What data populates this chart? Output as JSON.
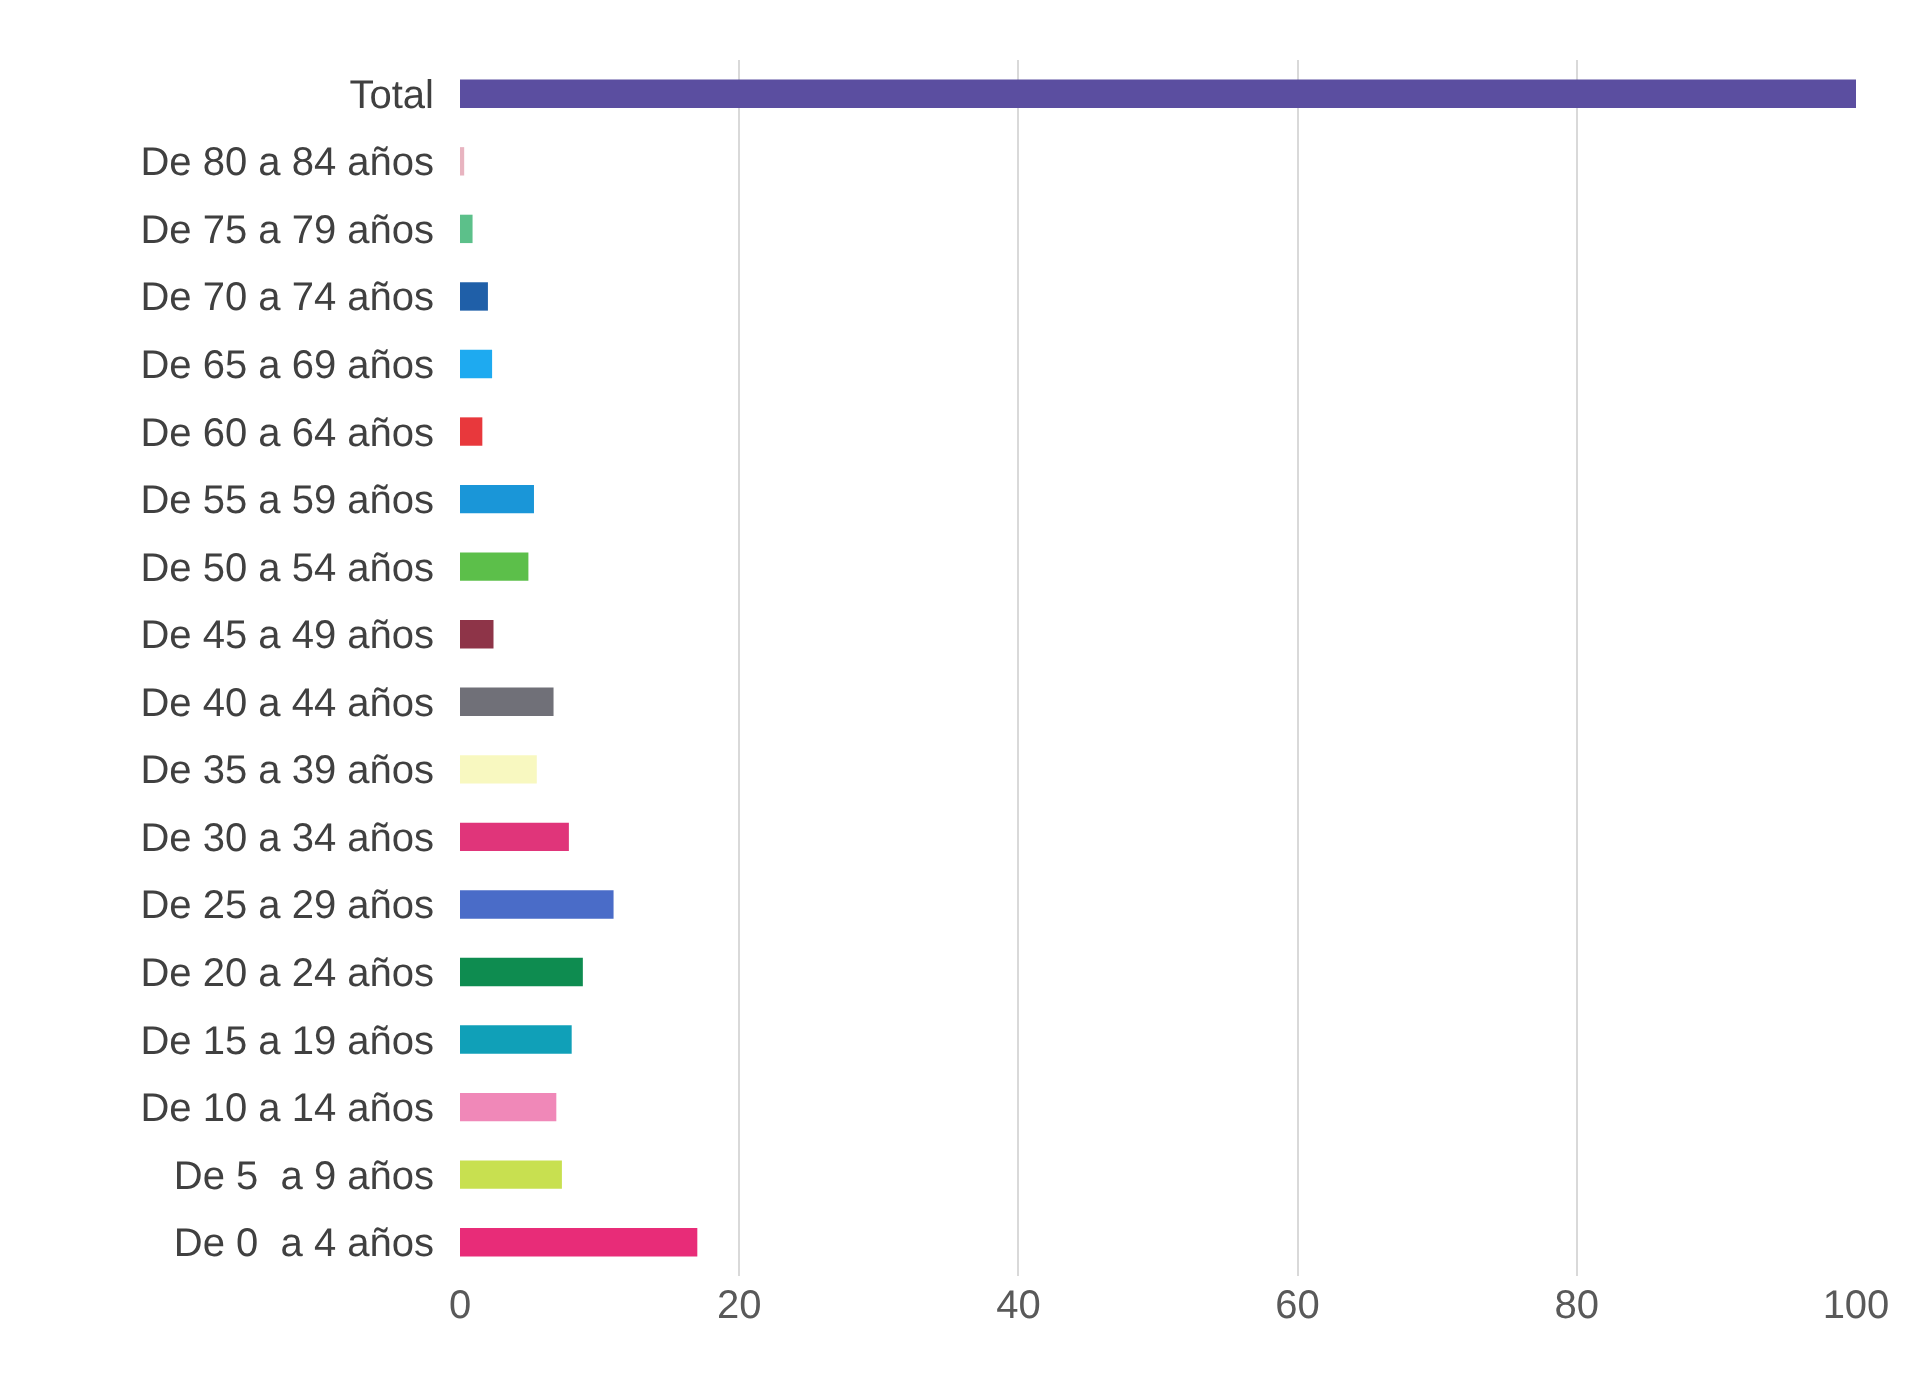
{
  "chart_data": {
    "type": "bar",
    "orientation": "horizontal",
    "categories": [
      "Total",
      "De 80 a 84 años",
      "De 75 a 79 años",
      "De 70 a 74 años",
      "De 65 a 69 años",
      "De 60 a 64 años",
      "De 55 a 59 años",
      "De 50 a 54 años",
      "De 45 a 49 años",
      "De 40 a 44 años",
      "De 35 a 39 años",
      "De 30 a 34 años",
      "De 25 a 29 años",
      "De 20 a 24 años",
      "De 15 a 19 años",
      "De 10 a 14 años",
      "De 5  a 9 años",
      "De 0  a 4 años"
    ],
    "values": [
      100,
      0.3,
      0.9,
      2.0,
      2.3,
      1.6,
      5.3,
      4.9,
      2.4,
      6.7,
      5.5,
      7.8,
      11.0,
      8.8,
      8.0,
      6.9,
      7.3,
      17
    ],
    "colors": [
      "#5b4ea0",
      "#e8b4c0",
      "#5cc08a",
      "#1f5fa8",
      "#1eaaf0",
      "#e8383c",
      "#1a96d8",
      "#5cbf4a",
      "#8e3448",
      "#707078",
      "#f8f8c0",
      "#e0357a",
      "#4a6cc8",
      "#0e8c50",
      "#10a0b8",
      "#f088b8",
      "#c8e050",
      "#e82c78"
    ],
    "xlim": [
      0,
      100
    ],
    "xticks": [
      0,
      20,
      40,
      60,
      80,
      100
    ],
    "grid": "x"
  }
}
